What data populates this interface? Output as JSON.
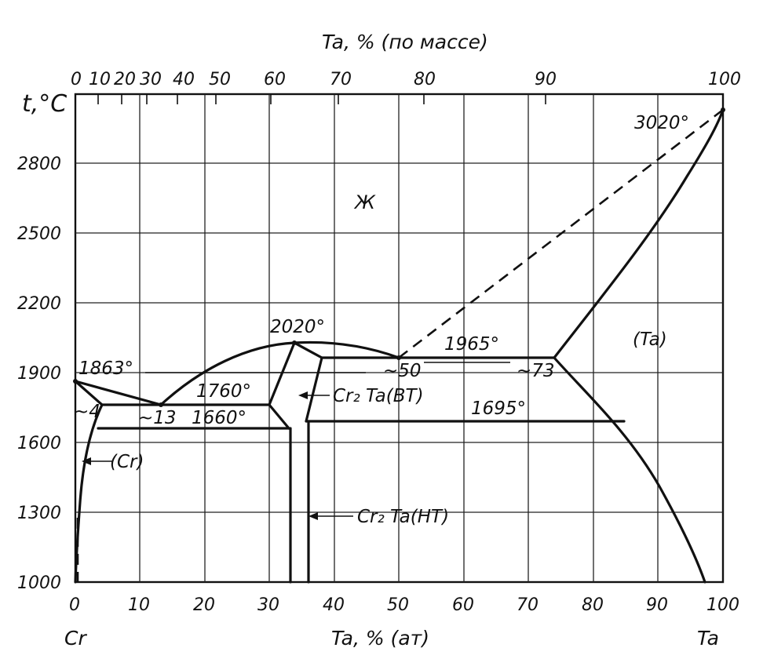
{
  "chart_data": {
    "type": "phase-diagram",
    "title": "",
    "top_axis_label": "Ta, % (по массе)",
    "top_ticks": [
      "0",
      "10",
      "20",
      "30",
      "40",
      "50",
      "60",
      "70",
      "80",
      "90",
      "100"
    ],
    "y_label": "t,°C",
    "y_ticks": [
      "1000",
      "1300",
      "1600",
      "1900",
      "2200",
      "2500",
      "2800"
    ],
    "ylim": [
      1000,
      3100
    ],
    "x_ticks": [
      "0",
      "10",
      "20",
      "30",
      "40",
      "50",
      "60",
      "70",
      "80",
      "90",
      "100"
    ],
    "xlim": [
      0,
      100
    ],
    "x_label": "Ta, % (ат)",
    "left_component": "Cr",
    "right_component": "Ta",
    "phase_labels": {
      "liquid": "Ж",
      "cr_solid": "(Cr)",
      "ta_solid": "(Ta)",
      "laves_ht": "Cr₂ Ta(ВТ)",
      "laves_lt": "Cr₂ Ta(НТ)"
    },
    "temperatures": {
      "ta_melt": "3020°",
      "laves_melt": "2020°",
      "cr_melt": "1863°",
      "eutectic_right": "1965°",
      "eutectic_left": "1760°",
      "transition_left": "1660°",
      "transition_right": "1695°"
    },
    "compositions": {
      "cr_solubility": "~4",
      "eutectic_left": "~13",
      "eutectic_right": "~50",
      "ta_solubility": "~73"
    },
    "points": {
      "cr_melt": [
        0,
        1863
      ],
      "ta_melt": [
        100,
        3020
      ],
      "laves_melt": [
        34.5,
        2020
      ],
      "eutectic_left": [
        13,
        1760
      ],
      "eutectic_right": [
        50,
        1965
      ],
      "ta_solubility": [
        74,
        1965
      ]
    }
  }
}
